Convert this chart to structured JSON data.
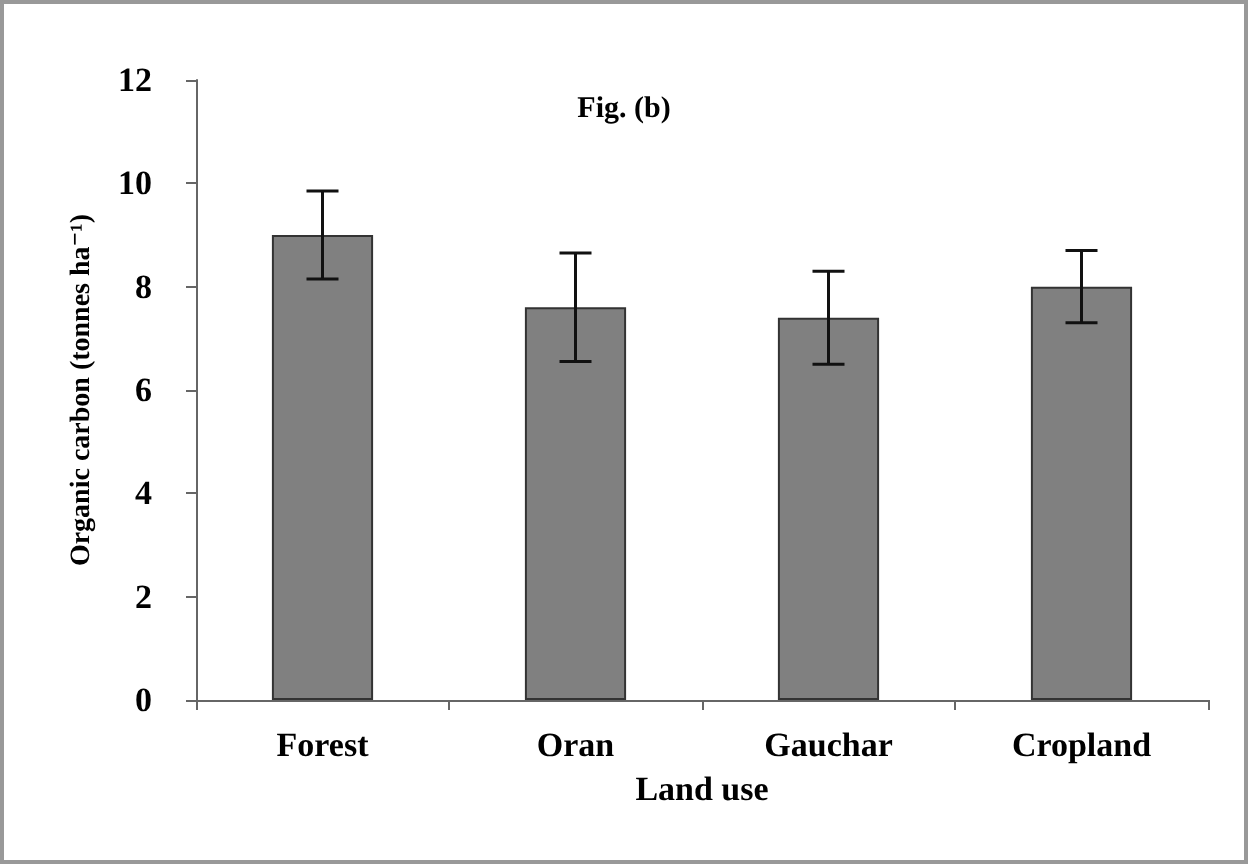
{
  "chart_data": {
    "type": "bar",
    "title": "Fig. (b)",
    "xlabel": "Land use",
    "ylabel": "Organic carbon (tonnes ha⁻¹)",
    "categories": [
      "Forest",
      "Oran",
      "Gauchar",
      "Cropland"
    ],
    "values": [
      9.0,
      7.6,
      7.4,
      8.0
    ],
    "errors": [
      0.85,
      1.05,
      0.9,
      0.7
    ],
    "color": "#808080",
    "ylim": [
      0,
      12
    ],
    "yticks": [
      0,
      2,
      4,
      6,
      8,
      10,
      12
    ],
    "grid": false
  }
}
